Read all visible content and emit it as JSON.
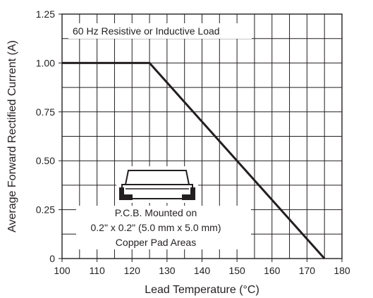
{
  "chart_data": {
    "type": "line",
    "title": "",
    "xlabel": "Lead Temperature (°C)",
    "ylabel": "Average Forward Rectified Current (A)",
    "xlim": [
      100,
      180
    ],
    "ylim": [
      0,
      1.25
    ],
    "x_ticks": [
      "100",
      "110",
      "120",
      "130",
      "140",
      "150",
      "160",
      "170",
      "180"
    ],
    "y_ticks": [
      "0",
      "0.25",
      "0.50",
      "0.75",
      "1.00",
      "1.25"
    ],
    "grid": true,
    "series": [
      {
        "x": [
          100,
          125,
          175
        ],
        "y": [
          1.0,
          1.0,
          0.0
        ]
      }
    ],
    "annotations": {
      "top_note": "60 Hz Resistive or Inductive Load",
      "pcb_line1": "P.C.B. Mounted on",
      "pcb_line2": "0.2\" x 0.2\" (5.0 mm x 5.0 mm)",
      "pcb_line3": "Copper Pad Areas"
    }
  }
}
